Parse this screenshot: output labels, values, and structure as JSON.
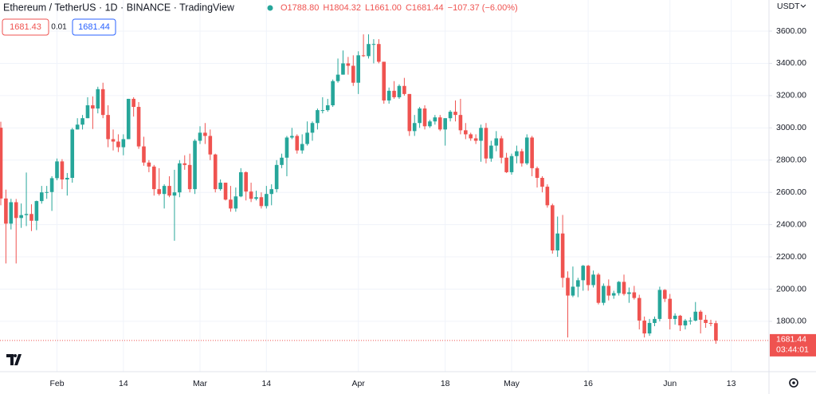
{
  "chart_data": {
    "type": "candlestick",
    "title": "Ethereum / TetherUS · 1D · BINANCE · TradingView",
    "ohlc_text": [
      "O1788.80",
      "H1804.32",
      "L1661.00",
      "C1681.44",
      "−107.37 (−6.00%)"
    ],
    "buttons": [
      "1681.43",
      "0.01",
      "1681.44"
    ],
    "currency": "USDT",
    "last_price_label": "1681.44",
    "countdown": "03:44:01",
    "up_color": "#26a69a",
    "down_color": "#ef5350",
    "grid": true,
    "x": [
      "01-21",
      "01-22",
      "01-23",
      "01-24",
      "01-25",
      "01-26",
      "01-27",
      "01-28",
      "01-29",
      "01-30",
      "01-31",
      "02-01",
      "02-02",
      "02-03",
      "02-04",
      "02-05",
      "02-06",
      "02-07",
      "02-08",
      "02-09",
      "02-10",
      "02-11",
      "02-12",
      "02-13",
      "02-14",
      "02-15",
      "02-16",
      "02-17",
      "02-18",
      "02-19",
      "02-20",
      "02-21",
      "02-22",
      "02-23",
      "02-24",
      "02-25",
      "02-26",
      "02-27",
      "02-28",
      "03-01",
      "03-02",
      "03-03",
      "03-04",
      "03-05",
      "03-06",
      "03-07",
      "03-08",
      "03-09",
      "03-10",
      "03-11",
      "03-12",
      "03-13",
      "03-14",
      "03-15",
      "03-16",
      "03-17",
      "03-18",
      "03-19",
      "03-20",
      "03-21",
      "03-22",
      "03-23",
      "03-24",
      "03-25",
      "03-26",
      "03-27",
      "03-28",
      "03-29",
      "03-30",
      "03-31",
      "04-01",
      "04-02",
      "04-03",
      "04-04",
      "04-05",
      "04-06",
      "04-07",
      "04-08",
      "04-09",
      "04-10",
      "04-11",
      "04-12",
      "04-13",
      "04-14",
      "04-15",
      "04-16",
      "04-17",
      "04-18",
      "04-19",
      "04-20",
      "04-21",
      "04-22",
      "04-23",
      "04-24",
      "04-25",
      "04-26",
      "04-27",
      "04-28",
      "04-29",
      "04-30",
      "05-01",
      "05-02",
      "05-03",
      "05-04",
      "05-05",
      "05-06",
      "05-07",
      "05-08",
      "05-09",
      "05-10",
      "05-11",
      "05-12",
      "05-13",
      "05-14",
      "05-15",
      "05-16",
      "05-17",
      "05-18",
      "05-19",
      "05-20",
      "05-21",
      "05-22",
      "05-23",
      "05-24",
      "05-25",
      "05-26",
      "05-27",
      "05-28",
      "05-29",
      "05-30",
      "05-31",
      "06-01",
      "06-02",
      "06-03",
      "06-04",
      "06-05",
      "06-06",
      "06-07",
      "06-08",
      "06-09",
      "06-10"
    ],
    "open": [
      3001,
      2562,
      2406,
      2539,
      2441,
      2459,
      2466,
      2424,
      2546,
      2600,
      2602,
      2688,
      2792,
      2680,
      2690,
      2990,
      3020,
      3060,
      3140,
      3120,
      3240,
      3080,
      2930,
      2915,
      2880,
      2930,
      3180,
      3130,
      2885,
      2785,
      2760,
      2620,
      2590,
      2640,
      2580,
      2600,
      2780,
      2770,
      2620,
      2920,
      2970,
      2950,
      2835,
      2620,
      2660,
      2555,
      2500,
      2575,
      2725,
      2605,
      2560,
      2570,
      2515,
      2590,
      2620,
      2770,
      2815,
      2940,
      2950,
      2860,
      2900,
      2970,
      3030,
      3110,
      3110,
      3140,
      3290,
      3330,
      3400,
      3385,
      3280,
      3450,
      3445,
      3520,
      3520,
      3410,
      3170,
      3230,
      3190,
      3260,
      3210,
      2980,
      3030,
      3120,
      3010,
      3040,
      3065,
      2990,
      3060,
      3100,
      3080,
      2985,
      2960,
      2935,
      2920,
      3000,
      2810,
      2890,
      2935,
      2815,
      2725,
      2825,
      2855,
      2780,
      2940,
      2750,
      2690,
      2635,
      2520,
      2240,
      2345,
      2070,
      1960,
      2015,
      2055,
      2145,
      2025,
      2090,
      1915,
      2020,
      1960,
      1975,
      2045,
      1970,
      1980,
      1945,
      1805,
      1725,
      1790,
      1815,
      1995,
      1940,
      1815,
      1835,
      1775,
      1805,
      1805,
      1860,
      1810,
      1790,
      1788.8
    ],
    "high": [
      3038,
      2617,
      2560,
      2559,
      2531,
      2723,
      2526,
      2549,
      2640,
      2640,
      2700,
      2810,
      2806,
      2720,
      3000,
      3060,
      3080,
      3190,
      3195,
      3255,
      3280,
      3140,
      2990,
      2960,
      2960,
      3180,
      3190,
      3160,
      2945,
      2800,
      2770,
      2750,
      2650,
      2700,
      2740,
      2800,
      2830,
      2840,
      2930,
      3010,
      3030,
      2990,
      2840,
      2680,
      2660,
      2640,
      2630,
      2750,
      2730,
      2660,
      2610,
      2600,
      2640,
      2650,
      2800,
      2840,
      2950,
      3000,
      2960,
      2960,
      3040,
      3040,
      3120,
      3190,
      3180,
      3300,
      3430,
      3480,
      3440,
      3450,
      3475,
      3580,
      3580,
      3550,
      3550,
      3410,
      3250,
      3290,
      3270,
      3310,
      3210,
      3080,
      3130,
      3140,
      3050,
      3080,
      3080,
      3060,
      3110,
      3170,
      3180,
      3030,
      2970,
      2960,
      3020,
      3030,
      2920,
      2980,
      2950,
      2845,
      2840,
      2890,
      2870,
      2960,
      2950,
      2760,
      2700,
      2650,
      2530,
      2450,
      2460,
      2110,
      2140,
      2070,
      2150,
      2150,
      2115,
      2100,
      2035,
      2060,
      1990,
      2050,
      2090,
      2010,
      2020,
      1965,
      1830,
      1815,
      1830,
      2015,
      2000,
      1970,
      1850,
      1840,
      1815,
      1825,
      1920,
      1870,
      1840,
      1810,
      1804.32
    ],
    "low": [
      2520,
      2159,
      2370,
      2159,
      2380,
      2391,
      2360,
      2366,
      2530,
      2560,
      2485,
      2675,
      2620,
      2580,
      2660,
      2990,
      2990,
      3060,
      2993,
      3090,
      3060,
      2880,
      2860,
      2850,
      2830,
      2930,
      3070,
      2870,
      2765,
      2725,
      2580,
      2580,
      2500,
      2570,
      2300,
      2570,
      2740,
      2600,
      2590,
      2900,
      2900,
      2800,
      2600,
      2610,
      2550,
      2480,
      2480,
      2570,
      2550,
      2540,
      2550,
      2500,
      2500,
      2520,
      2600,
      2750,
      2700,
      2930,
      2840,
      2840,
      2890,
      2920,
      2990,
      3090,
      3100,
      3130,
      3280,
      3330,
      3330,
      3260,
      3210,
      3440,
      3430,
      3400,
      3400,
      3150,
      3150,
      3180,
      3180,
      3200,
      2950,
      2950,
      3000,
      2990,
      3000,
      3020,
      2980,
      2890,
      3040,
      3040,
      2960,
      2930,
      2920,
      2900,
      2790,
      2780,
      2790,
      2855,
      2780,
      2720,
      2710,
      2780,
      2760,
      2770,
      2700,
      2630,
      2600,
      2505,
      2220,
      2200,
      2010,
      1700,
      1950,
      1950,
      1990,
      1990,
      2010,
      1905,
      1900,
      1930,
      1940,
      1960,
      1960,
      1915,
      1935,
      1750,
      1700,
      1710,
      1770,
      1800,
      1920,
      1750,
      1780,
      1740,
      1750,
      1780,
      1800,
      1725,
      1760,
      1770,
      1661.0
    ],
    "close": [
      2562,
      2406,
      2539,
      2441,
      2459,
      2466,
      2424,
      2546,
      2600,
      2602,
      2688,
      2792,
      2680,
      2690,
      2990,
      3020,
      3060,
      3140,
      3120,
      3240,
      3080,
      2930,
      2915,
      2880,
      2930,
      3180,
      3130,
      2885,
      2785,
      2760,
      2620,
      2590,
      2640,
      2580,
      2600,
      2780,
      2770,
      2620,
      2920,
      2970,
      2950,
      2835,
      2620,
      2660,
      2555,
      2500,
      2575,
      2725,
      2605,
      2560,
      2570,
      2515,
      2590,
      2620,
      2770,
      2815,
      2940,
      2950,
      2860,
      2900,
      2970,
      3030,
      3110,
      3110,
      3140,
      3290,
      3330,
      3400,
      3385,
      3280,
      3450,
      3445,
      3520,
      3520,
      3410,
      3170,
      3230,
      3190,
      3260,
      3210,
      2980,
      3030,
      3120,
      3010,
      3040,
      3065,
      2990,
      3060,
      3100,
      3080,
      2985,
      2960,
      2935,
      2920,
      3000,
      2810,
      2890,
      2935,
      2815,
      2725,
      2825,
      2855,
      2780,
      2940,
      2750,
      2690,
      2635,
      2520,
      2240,
      2345,
      2070,
      1960,
      2015,
      2055,
      2145,
      2025,
      2090,
      1915,
      2020,
      1960,
      1975,
      2045,
      1970,
      1980,
      1945,
      1805,
      1725,
      1790,
      1815,
      1995,
      1940,
      1815,
      1835,
      1775,
      1805,
      1805,
      1860,
      1810,
      1790,
      1789,
      1681.44
    ],
    "ylim": [
      1488,
      3793
    ],
    "yticks": [
      {
        "value": 1800,
        "label": "1800.00"
      },
      {
        "value": 2000,
        "label": "2000.00"
      },
      {
        "value": 2200,
        "label": "2200.00"
      },
      {
        "value": 2400,
        "label": "2400.00"
      },
      {
        "value": 2600,
        "label": "2600.00"
      },
      {
        "value": 2800,
        "label": "2800.00"
      },
      {
        "value": 3000,
        "label": "3000.00"
      },
      {
        "value": 3200,
        "label": "3200.00"
      },
      {
        "value": 3400,
        "label": "3400.00"
      },
      {
        "value": 3600,
        "label": "3600.00"
      }
    ],
    "xticks": [
      {
        "value": "02-01",
        "label": "Feb"
      },
      {
        "value": "02-14",
        "label": "14"
      },
      {
        "value": "03-01",
        "label": "Mar"
      },
      {
        "value": "03-14",
        "label": "14"
      },
      {
        "value": "04-01",
        "label": "Apr"
      },
      {
        "value": "04-18",
        "label": "18"
      },
      {
        "value": "05-01",
        "label": "May"
      },
      {
        "value": "05-16",
        "label": "16"
      },
      {
        "value": "06-01",
        "label": "Jun"
      },
      {
        "value": "06-13",
        "label": "13"
      }
    ]
  }
}
